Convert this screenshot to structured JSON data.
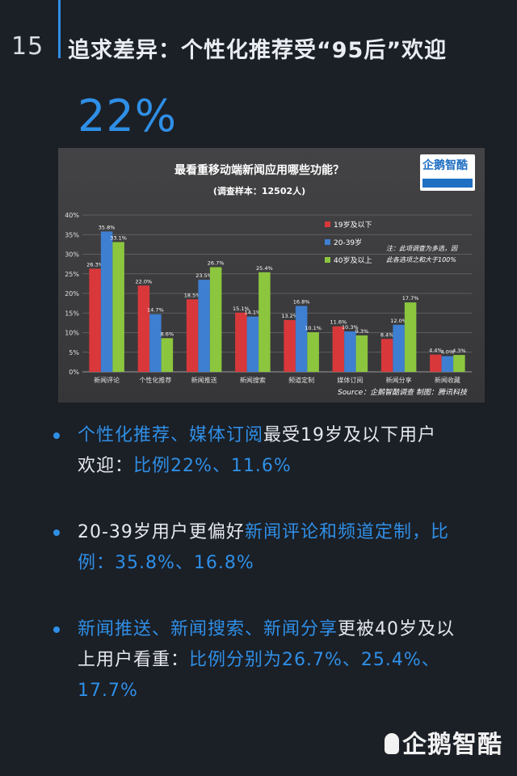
{
  "page": {
    "number": "15",
    "title": "追求差异：个性化推荐受“95后”欢迎",
    "headline_stat": "22%"
  },
  "chart_data": {
    "type": "bar",
    "title": "最看重移动端新闻应用哪些功能？",
    "subtitle": "(调查样本：12502人)",
    "categories": [
      "新闻评论",
      "个性化推荐",
      "新闻推送",
      "新闻搜索",
      "频道定制",
      "媒体订阅",
      "新闻分享",
      "新闻收藏"
    ],
    "series": [
      {
        "name": "19岁及以下",
        "color": "#d9383b",
        "values": [
          26.3,
          22.0,
          18.5,
          15.1,
          13.2,
          11.6,
          8.4,
          4.4
        ],
        "labels": [
          "26.3%",
          "22.0%",
          "18.5%",
          "15.1%",
          "13.2%",
          "11.6%",
          "8.4%",
          "4.4%"
        ]
      },
      {
        "name": "20-39岁",
        "color": "#3e7fd1",
        "values": [
          35.8,
          14.7,
          23.5,
          14.1,
          16.8,
          10.3,
          12.0,
          4.0
        ],
        "labels": [
          "35.8%",
          "14.7%",
          "23.5%",
          "14.1%",
          "16.8%",
          "10.3%",
          "12.0%",
          "4.0%"
        ]
      },
      {
        "name": "40岁及以上",
        "color": "#8cc63f",
        "values": [
          33.1,
          8.6,
          26.7,
          25.4,
          10.1,
          9.3,
          17.7,
          4.3
        ],
        "labels": [
          "33.1%",
          "8.6%",
          "26.7%",
          "25.4%",
          "10.1%",
          "9.3%",
          "17.7%",
          "4.3%"
        ]
      }
    ],
    "y_ticks": [
      "0%",
      "5%",
      "10%",
      "15%",
      "20%",
      "25%",
      "30%",
      "35%",
      "40%"
    ],
    "ylim": [
      0,
      40
    ],
    "grid": true,
    "legend_position": "right",
    "note_line1": "注：此项调查为多选，因",
    "note_line2": "此各选项之和大于100%",
    "source": "Source：企鹅智酷调查  制图：腾讯科技",
    "badge_text": "企鹅智酷"
  },
  "bullets": [
    {
      "lines": [
        [
          {
            "t": "个性化推荐、媒体订阅",
            "hl": true
          },
          {
            "t": "最受19岁及以下用户",
            "hl": false
          }
        ],
        [
          {
            "t": "欢迎：",
            "hl": false
          },
          {
            "t": "比例22%、11.6%",
            "hl": true
          }
        ]
      ]
    },
    {
      "lines": [
        [
          {
            "t": "20-39岁用户更偏好",
            "hl": false
          },
          {
            "t": "新闻评论和频道定制，比",
            "hl": true
          }
        ],
        [
          {
            "t": "例：35.8%、16.8%",
            "hl": true
          }
        ]
      ]
    },
    {
      "lines": [
        [
          {
            "t": "新闻推送、新闻搜索、新闻分享",
            "hl": true
          },
          {
            "t": "更被40岁及以",
            "hl": false
          }
        ],
        [
          {
            "t": "上用户看重：",
            "hl": false
          },
          {
            "t": "比例分别为26.7%、25.4%、",
            "hl": true
          }
        ],
        [
          {
            "t": "17.7%",
            "hl": true
          }
        ]
      ]
    }
  ],
  "brand": "企鹅智酷",
  "colors": {
    "accent": "#2f8fe6",
    "background": "#1b1f26"
  }
}
